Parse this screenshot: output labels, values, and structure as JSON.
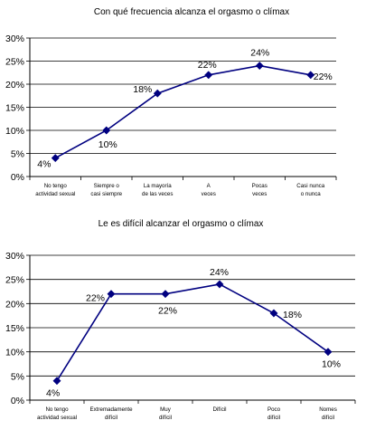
{
  "chart_data": [
    {
      "type": "line",
      "title": "Con qué frecuencia alcanza el orgasmo o clímax",
      "categories": [
        "No tengo actividad sexual",
        "Siempre o casi siempre",
        "La mayoría de las veces",
        "A veces",
        "Pocas veces",
        "Casi nunca o nunca"
      ],
      "values": [
        4,
        10,
        18,
        22,
        24,
        22
      ],
      "data_labels": [
        "4%",
        "10%",
        "18%",
        "22%",
        "24%",
        "22%"
      ],
      "yticks": [
        "0%",
        "5%",
        "10%",
        "15%",
        "20%",
        "25%",
        "30%"
      ],
      "ylim": [
        0,
        30
      ],
      "grid": true,
      "legend": "none",
      "line_color": "#000080"
    },
    {
      "type": "line",
      "title": "Le es difícil alcanzar el orgasmo o clímax",
      "categories": [
        "No tengo actividad sexual",
        "Extremadamente difícil",
        "Muy difícil",
        "Difícil",
        "Poco difícil",
        "Nomes difícil"
      ],
      "values": [
        4,
        22,
        22,
        24,
        18,
        10
      ],
      "data_labels": [
        "4%",
        "22%",
        "22%",
        "24%",
        "18%",
        "10%"
      ],
      "yticks": [
        "0%",
        "5%",
        "10%",
        "15%",
        "20%",
        "25%",
        "30%"
      ],
      "ylim": [
        0,
        30
      ],
      "grid": true,
      "legend": "none",
      "line_color": "#000080"
    }
  ]
}
